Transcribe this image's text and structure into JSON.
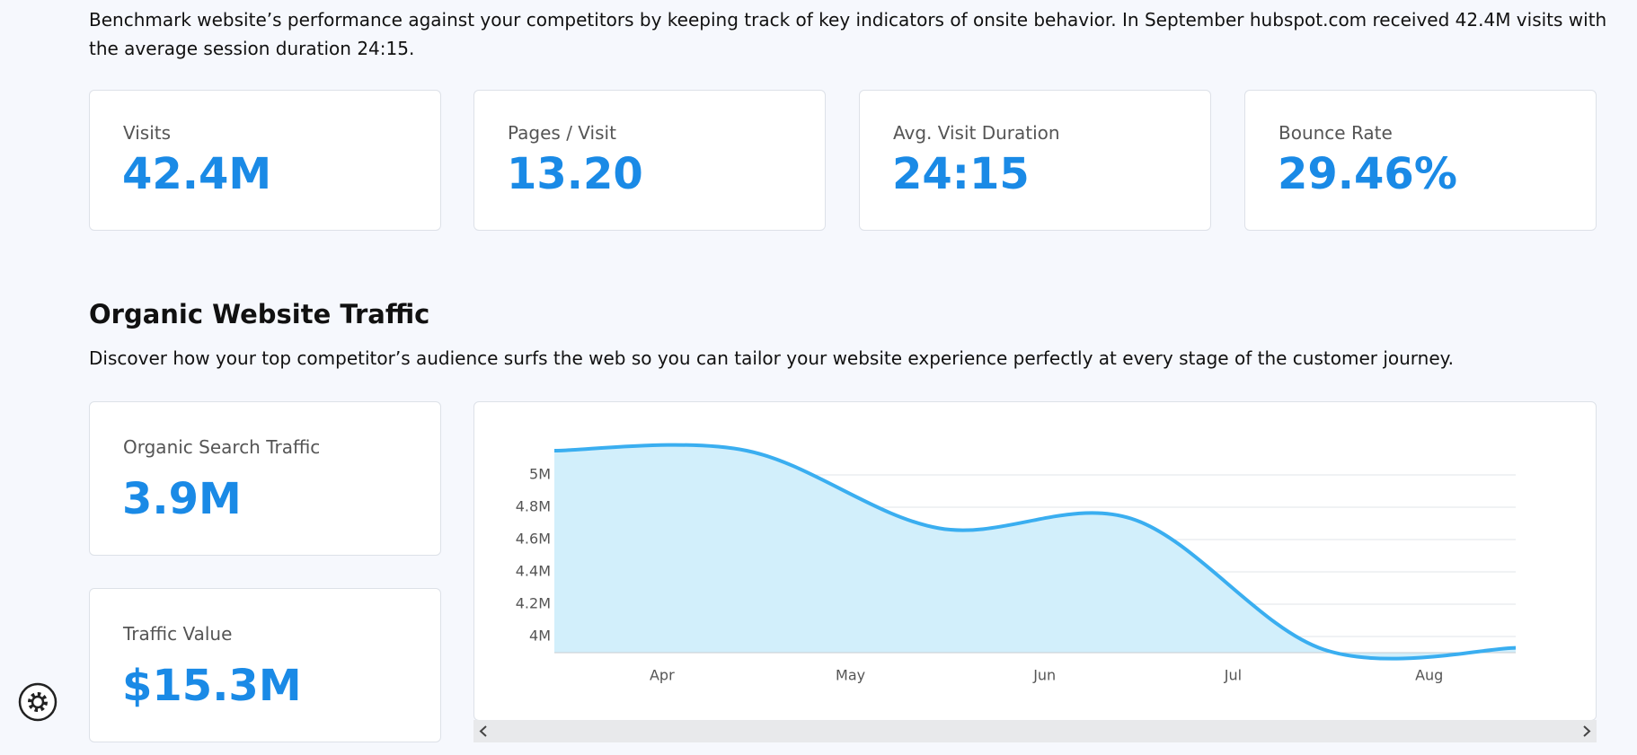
{
  "intro": "Benchmark website’s performance against your competitors by keeping track of key indicators of onsite behavior. In September hubspot.com received 42.4M visits with the average session duration 24:15.",
  "metrics": [
    {
      "label": "Visits",
      "value": "42.4M"
    },
    {
      "label": "Pages / Visit",
      "value": "13.20"
    },
    {
      "label": "Avg. Visit Duration",
      "value": "24:15"
    },
    {
      "label": "Bounce Rate",
      "value": "29.46%"
    }
  ],
  "section": {
    "title": "Organic Website Traffic",
    "description": "Discover how your top competitor’s audience surfs the web so you can tailor your website experience perfectly at every stage of the customer journey."
  },
  "side_metrics": [
    {
      "label": "Organic Search Traffic",
      "value": "3.9M"
    },
    {
      "label": "Traffic Value",
      "value": "$15.3M"
    }
  ],
  "chart_data": {
    "type": "area",
    "x": [
      0,
      1,
      2,
      3,
      4,
      5
    ],
    "values": [
      5.15,
      5.15,
      4.67,
      4.73,
      3.92,
      3.93
    ],
    "color": "#3aaef0",
    "fill": "#d2effb",
    "xlim": [
      0,
      5
    ],
    "xticks": [
      {
        "value": 0.56,
        "label": "Apr"
      },
      {
        "value": 1.54,
        "label": "May"
      },
      {
        "value": 2.55,
        "label": "Jun"
      },
      {
        "value": 3.53,
        "label": "Jul"
      },
      {
        "value": 4.55,
        "label": "Aug"
      }
    ],
    "ylim": [
      3.9,
      5.3
    ],
    "yticks": [
      {
        "value": 4,
        "label": "4M"
      },
      {
        "value": 4.2,
        "label": "4.2M"
      },
      {
        "value": 4.4,
        "label": "4.4M"
      },
      {
        "value": 4.6,
        "label": "4.6M"
      },
      {
        "value": 4.8,
        "label": "4.8M"
      },
      {
        "value": 5,
        "label": "5M"
      }
    ],
    "grid": true
  }
}
